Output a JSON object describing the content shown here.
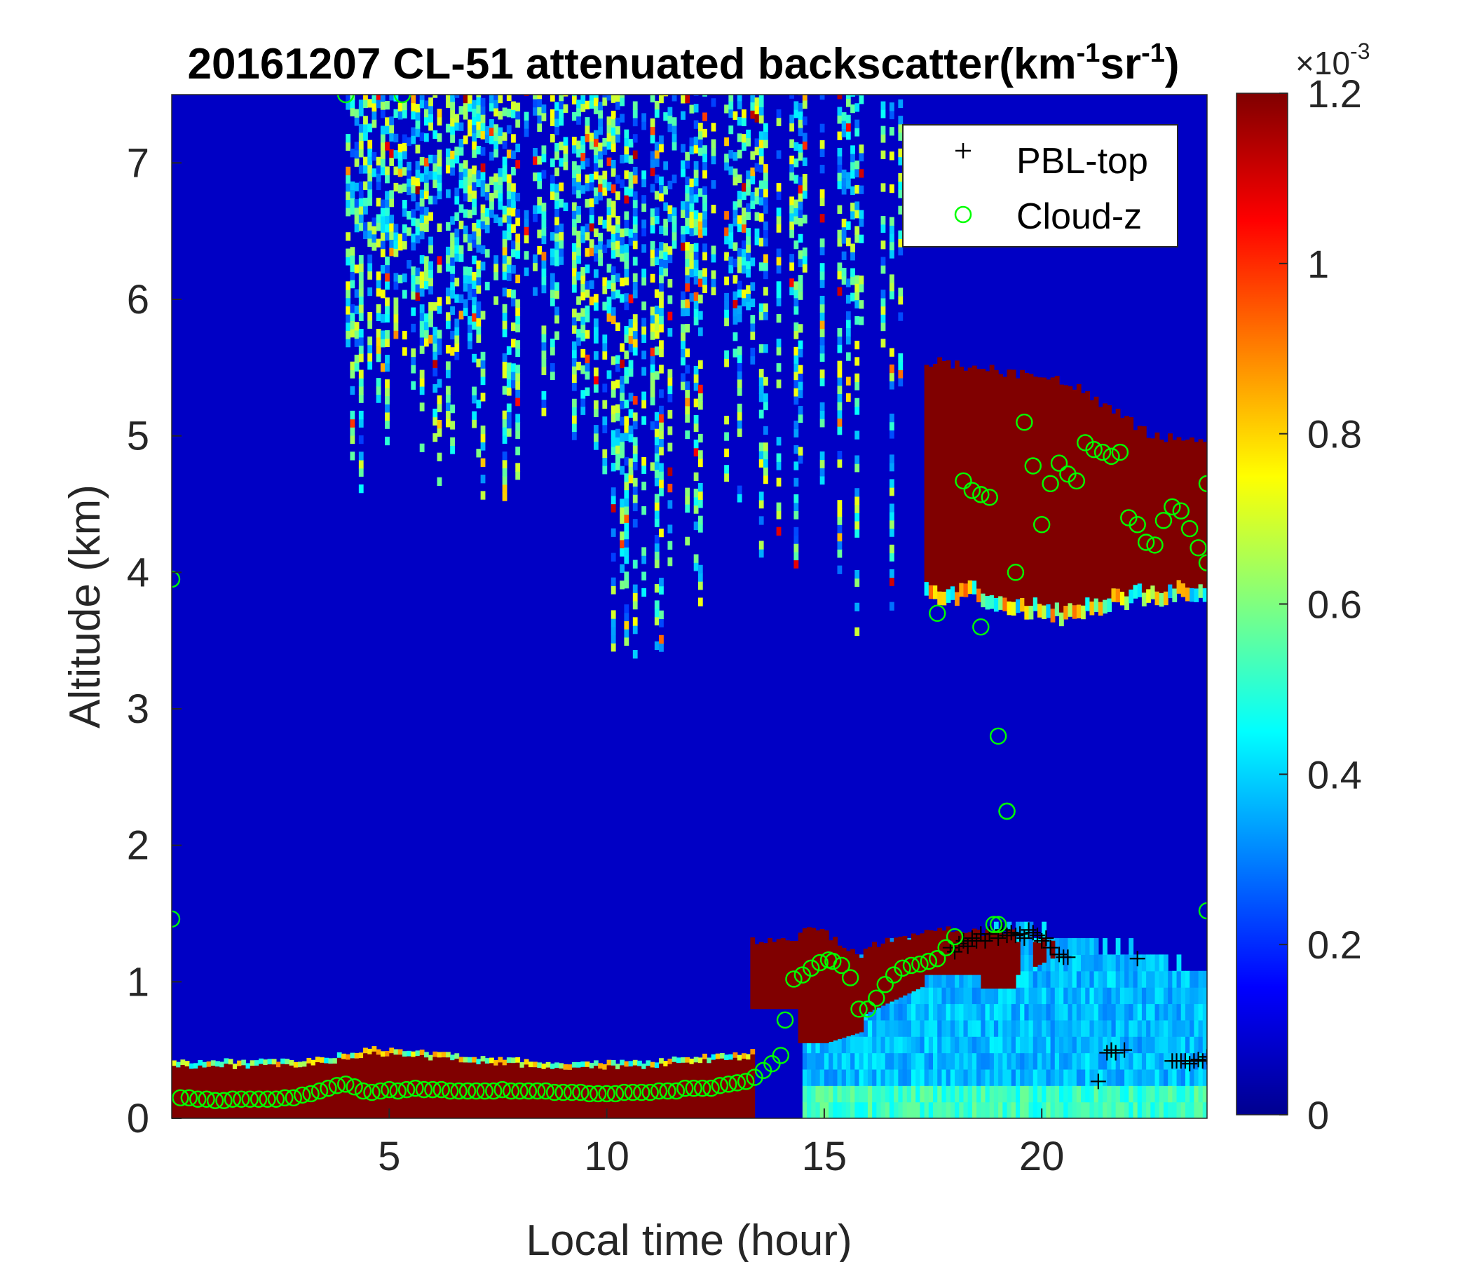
{
  "chart_data": {
    "type": "heatmap",
    "title_main": "20161207  CL-51 attenuated backscatter(km",
    "title_unit_sup1": "-1",
    "title_unit_mid": "sr",
    "title_unit_sup2": "-1",
    "title_unit_end": ")",
    "xlabel": "Local time (hour)",
    "ylabel": "Altitude (km)",
    "xlim": [
      0,
      23.8
    ],
    "ylim": [
      0,
      7.5
    ],
    "xticks": [
      5,
      10,
      15,
      20
    ],
    "yticks": [
      0,
      1,
      2,
      3,
      4,
      5,
      6,
      7
    ],
    "grid": false,
    "colormap": "jet",
    "colorbar": {
      "clim": [
        0,
        1.2
      ],
      "ticks": [
        0,
        0.2,
        0.4,
        0.6,
        0.8,
        1,
        1.2
      ],
      "multiplier_base": "×10",
      "multiplier_exp": "-3"
    },
    "legend": {
      "placement": "top-right",
      "entries": [
        {
          "label": "PBL-top",
          "marker": "+",
          "color": "#000000"
        },
        {
          "label": "Cloud-z",
          "marker": "o",
          "color": "#00ff00"
        }
      ]
    },
    "backscatter_features": [
      {
        "name": "surface-layer",
        "x": [
          0,
          13.3
        ],
        "y_top": [
          0.38,
          0.48,
          0.45,
          0.38,
          0.46
        ],
        "level": "saturated"
      },
      {
        "name": "boundary-layer-cloud",
        "x": [
          13.3,
          19.4
        ],
        "y": [
          0.8,
          1.4
        ],
        "level": "saturated"
      },
      {
        "name": "mid-level-cloud",
        "x": [
          17.3,
          23.8
        ],
        "y": [
          3.6,
          5.55
        ],
        "level": "saturated"
      },
      {
        "name": "cirrus-fallstreaks",
        "x": [
          4,
          16.5
        ],
        "y": [
          3.5,
          7.5
        ],
        "level": "0.2-1.1"
      },
      {
        "name": "afternoon-mixed-layer",
        "x": [
          14.5,
          23.8
        ],
        "y": [
          0,
          1.4
        ],
        "level": "0.2-0.5"
      }
    ],
    "series": [
      {
        "name": "PBL-top",
        "marker": "+",
        "x": [
          17.9,
          18.0,
          18.1,
          18.2,
          18.3,
          18.4,
          18.5,
          18.6,
          18.7,
          18.8,
          19.0,
          19.1,
          19.2,
          19.3,
          19.4,
          19.5,
          19.6,
          19.7,
          19.8,
          19.9,
          20.0,
          20.1,
          20.2,
          20.4,
          20.5,
          20.6,
          21.3,
          21.5,
          21.6,
          21.7,
          21.9,
          22.2,
          23.0,
          23.1,
          23.2,
          23.3,
          23.4,
          23.5,
          23.6,
          23.7,
          23.8
        ],
        "y": [
          1.25,
          1.22,
          1.28,
          1.3,
          1.26,
          1.32,
          1.3,
          1.35,
          1.3,
          1.35,
          1.32,
          1.38,
          1.34,
          1.36,
          1.34,
          1.35,
          1.32,
          1.38,
          1.36,
          1.34,
          1.3,
          1.32,
          1.25,
          1.2,
          1.18,
          1.18,
          0.27,
          0.48,
          0.5,
          0.48,
          0.5,
          1.17,
          0.42,
          0.42,
          0.42,
          0.42,
          0.4,
          0.42,
          0.43,
          0.42,
          0.45
        ]
      },
      {
        "name": "Cloud-z",
        "marker": "o",
        "x": [
          0.2,
          0.4,
          0.6,
          0.8,
          1.0,
          1.2,
          1.4,
          1.6,
          1.8,
          2.0,
          2.2,
          2.4,
          2.6,
          2.8,
          3.0,
          3.2,
          3.4,
          3.6,
          3.8,
          4.0,
          4.2,
          4.4,
          4.6,
          4.8,
          5.0,
          5.2,
          5.4,
          5.6,
          5.8,
          6.0,
          6.2,
          6.4,
          6.6,
          6.8,
          7.0,
          7.2,
          7.4,
          7.6,
          7.8,
          8.0,
          8.2,
          8.4,
          8.6,
          8.8,
          9.0,
          9.2,
          9.4,
          9.6,
          9.8,
          10.0,
          10.2,
          10.4,
          10.6,
          10.8,
          11.0,
          11.2,
          11.4,
          11.6,
          11.8,
          12.0,
          12.2,
          12.4,
          12.6,
          12.8,
          13.0,
          13.2,
          13.4,
          13.6,
          13.8,
          14.0,
          14.1,
          14.3,
          14.5,
          14.7,
          14.9,
          15.1,
          15.2,
          15.4,
          15.6,
          15.8,
          16.0,
          16.2,
          16.4,
          16.6,
          16.8,
          17.0,
          17.2,
          17.4,
          17.6,
          17.8,
          18.0,
          18.2,
          18.4,
          18.6,
          18.8,
          19.0,
          19.2,
          19.4,
          19.6,
          19.8,
          20.0,
          20.2,
          20.4,
          20.6,
          20.8,
          21.0,
          21.2,
          21.4,
          21.6,
          21.8,
          22.0,
          22.2,
          22.4,
          22.6,
          22.8,
          23.0,
          23.2,
          23.4,
          23.6,
          23.8,
          0.0,
          0.0,
          23.8,
          23.8,
          4.0,
          5.3,
          17.6,
          18.6,
          19.0,
          19.2,
          18.9
        ],
        "y": [
          0.15,
          0.15,
          0.14,
          0.14,
          0.13,
          0.13,
          0.14,
          0.14,
          0.14,
          0.14,
          0.14,
          0.14,
          0.15,
          0.15,
          0.17,
          0.18,
          0.2,
          0.22,
          0.24,
          0.25,
          0.23,
          0.2,
          0.19,
          0.2,
          0.21,
          0.2,
          0.21,
          0.22,
          0.21,
          0.21,
          0.21,
          0.2,
          0.2,
          0.2,
          0.2,
          0.2,
          0.2,
          0.21,
          0.2,
          0.2,
          0.2,
          0.2,
          0.2,
          0.19,
          0.19,
          0.19,
          0.19,
          0.18,
          0.18,
          0.18,
          0.18,
          0.19,
          0.19,
          0.19,
          0.19,
          0.2,
          0.2,
          0.2,
          0.22,
          0.22,
          0.22,
          0.22,
          0.24,
          0.25,
          0.26,
          0.27,
          0.3,
          0.35,
          0.4,
          0.46,
          0.72,
          1.02,
          1.05,
          1.1,
          1.14,
          1.16,
          1.15,
          1.12,
          1.03,
          0.8,
          0.8,
          0.88,
          0.98,
          1.05,
          1.1,
          1.12,
          1.13,
          1.15,
          1.17,
          1.25,
          1.33,
          4.67,
          4.6,
          4.57,
          4.55,
          1.42,
          2.25,
          4.0,
          5.1,
          4.78,
          4.35,
          4.65,
          4.8,
          4.72,
          4.67,
          4.95,
          4.9,
          4.88,
          4.85,
          4.88,
          4.4,
          4.35,
          4.22,
          4.2,
          4.38,
          4.48,
          4.45,
          4.32,
          4.18,
          4.65,
          1.46,
          3.95,
          1.52,
          4.07,
          7.5,
          7.5,
          3.7,
          3.6,
          2.8,
          2.25,
          1.42
        ]
      }
    ]
  }
}
